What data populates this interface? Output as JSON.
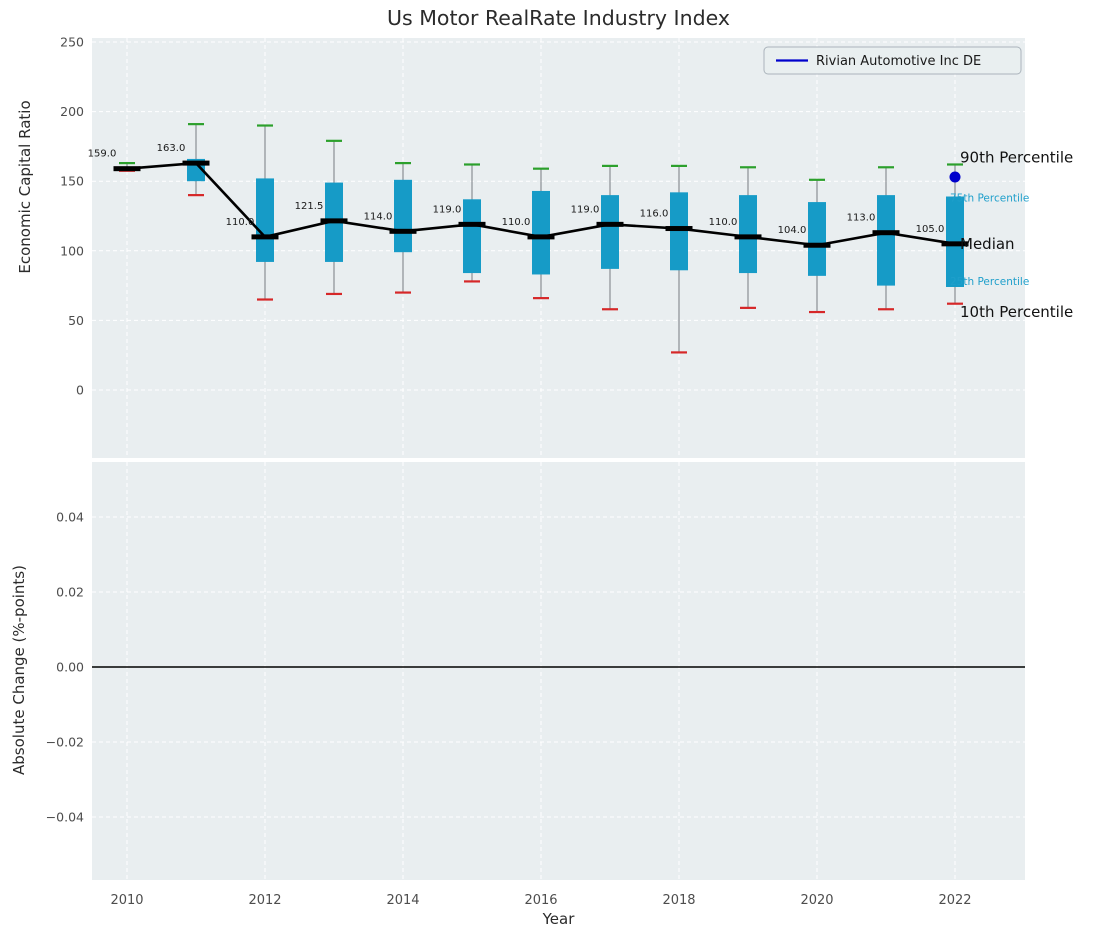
{
  "figure": {
    "title": "Us Motor RealRate Industry Index",
    "xlabel": "Year",
    "top_ylabel": "Economic Capital Ratio",
    "bottom_ylabel": "Absolute Change (%-points)"
  },
  "colors": {
    "plot_bg": "#e9eef0",
    "grid": "#ffffff",
    "box": "#169bc7",
    "high_cap": "#2ca02c",
    "low_cap": "#d62728",
    "median": "#000000",
    "marker": "#0000cc",
    "accent_text": "#1f9fcb",
    "primary_text": "#111111",
    "tick_text": "#4d4d4d"
  },
  "chart_data": [
    {
      "type": "boxplot",
      "title": "Us Motor RealRate Industry Index",
      "xlabel": "Year",
      "ylabel": "Economic Capital Ratio",
      "ylim": [
        -50,
        250
      ],
      "yticks": [
        250,
        200,
        150,
        100,
        50,
        0
      ],
      "xticks": [
        2010,
        2012,
        2014,
        2016,
        2018,
        2020,
        2022
      ],
      "grid": true,
      "legend": {
        "position": "upper right",
        "entries": [
          {
            "label": "Rivian Automotive Inc DE",
            "color": "#0000cc",
            "style": "line"
          }
        ]
      },
      "boxes": [
        {
          "year": 2010,
          "p10": 157.5,
          "p25": 158,
          "median": 159.0,
          "p75": 160.5,
          "p90": 163,
          "label": "159.0"
        },
        {
          "year": 2011,
          "p10": 140,
          "p25": 150,
          "median": 163.0,
          "p75": 166,
          "p90": 191,
          "label": "163.0"
        },
        {
          "year": 2012,
          "p10": 65,
          "p25": 92,
          "median": 110.0,
          "p75": 152,
          "p90": 190,
          "label": "110.0"
        },
        {
          "year": 2013,
          "p10": 69,
          "p25": 92,
          "median": 121.5,
          "p75": 149,
          "p90": 179,
          "label": "121.5"
        },
        {
          "year": 2014,
          "p10": 70,
          "p25": 99,
          "median": 114.0,
          "p75": 151,
          "p90": 163,
          "label": "114.0"
        },
        {
          "year": 2015,
          "p10": 78,
          "p25": 84,
          "median": 119.0,
          "p75": 137,
          "p90": 162,
          "label": "119.0"
        },
        {
          "year": 2016,
          "p10": 66,
          "p25": 83,
          "median": 110.0,
          "p75": 143,
          "p90": 159,
          "label": "110.0"
        },
        {
          "year": 2017,
          "p10": 58,
          "p25": 87,
          "median": 119.0,
          "p75": 140,
          "p90": 161,
          "label": "119.0"
        },
        {
          "year": 2018,
          "p10": 27,
          "p25": 86,
          "median": 116.0,
          "p75": 142,
          "p90": 161,
          "label": "116.0"
        },
        {
          "year": 2019,
          "p10": 59,
          "p25": 84,
          "median": 110.0,
          "p75": 140,
          "p90": 160,
          "label": "110.0"
        },
        {
          "year": 2020,
          "p10": 56,
          "p25": 82,
          "median": 104.0,
          "p75": 135,
          "p90": 151,
          "label": "104.0"
        },
        {
          "year": 2021,
          "p10": 58,
          "p25": 75,
          "median": 113.0,
          "p75": 140,
          "p90": 160,
          "label": "113.0"
        },
        {
          "year": 2022,
          "p10": 62,
          "p25": 74,
          "median": 105.0,
          "p75": 139,
          "p90": 162,
          "label": "105.0"
        }
      ],
      "company_point": {
        "year": 2022,
        "value": 153,
        "label": "Rivian Automotive Inc DE"
      },
      "annotations": [
        {
          "text": "90th Percentile",
          "value": 167,
          "tone": "primary"
        },
        {
          "text": "75th Percentile",
          "value": 139,
          "tone": "accent"
        },
        {
          "text": "Median",
          "value": 105,
          "tone": "primary"
        },
        {
          "text": "25th Percentile",
          "value": 79,
          "tone": "accent"
        },
        {
          "text": "10th Percentile",
          "value": 56,
          "tone": "primary"
        }
      ]
    },
    {
      "type": "line",
      "ylabel": "Absolute Change (%-points)",
      "xlabel": "Year",
      "ylim": [
        -0.055,
        0.055
      ],
      "yticks": [
        0.04,
        0.02,
        0,
        -0.02,
        -0.04
      ],
      "xticks": [
        2010,
        2012,
        2014,
        2016,
        2018,
        2020,
        2022
      ],
      "grid": true,
      "zero_line": 0,
      "series": []
    }
  ]
}
